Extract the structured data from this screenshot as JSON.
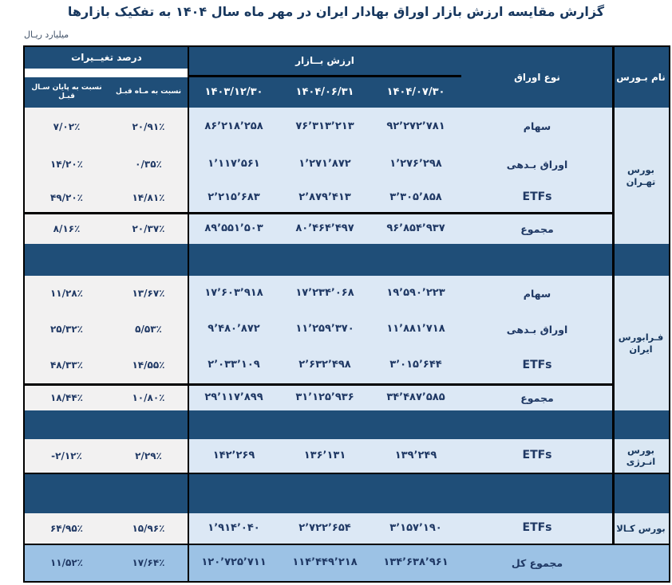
{
  "title": "گزارش مقایسه ارزش بازار اوراق بهادار ایران در مهر ماه سال ۱۴۰۴ به تفکیک بازارها",
  "unit_label": "میلیارد ریـال",
  "colors": {
    "header_dark_blue": "#1F4E78",
    "value_light_blue": "#DCE8F5",
    "exchange_light_blue": "#DAE7F3",
    "percent_light_gray": "#F2F1F1",
    "grand_total_blue": "#9CC2E5",
    "text_navy": "#1F3864"
  },
  "header": {
    "exchange_col": "نام بـورس",
    "security_type_col": "نوع اوراق",
    "market_value_group": "ارزش بــازار",
    "pct_change_group": "درصد تغیــیرات",
    "dates": [
      "۱۴۰۴/۰۷/۳۰",
      "۱۴۰۴/۰۶/۳۱",
      "۱۴۰۳/۱۲/۳۰"
    ],
    "pct_cols": [
      "نسبت به مـاه قبـل",
      "نسبت به پایان سـال قبـل"
    ]
  },
  "groups": [
    {
      "exchange": "بورس تهـران",
      "rows": [
        {
          "type": "سهام",
          "values": [
            "۹۲٬۲۷۲٬۷۸۱",
            "۷۶٬۳۱۳٬۲۱۳",
            "۸۶٬۲۱۸٬۲۵۸"
          ],
          "pct": [
            "۲۰/۹۱٪",
            "۷/۰۲٪"
          ]
        },
        {
          "type": "اوراق بـدهی",
          "values": [
            "۱٬۲۷۶٬۲۹۸",
            "۱٬۲۷۱٬۸۷۲",
            "۱٬۱۱۷٬۵۶۱"
          ],
          "pct": [
            "۰/۳۵٪",
            "۱۴/۲۰٪"
          ]
        },
        {
          "type": "ETFs",
          "values": [
            "۳٬۳۰۵٬۸۵۸",
            "۲٬۸۷۹٬۴۱۳",
            "۲٬۲۱۵٬۶۸۳"
          ],
          "pct": [
            "۱۴/۸۱٪",
            "۴۹/۲۰٪"
          ]
        }
      ],
      "total": {
        "type": "مجموع",
        "values": [
          "۹۶٬۸۵۴٬۹۳۷",
          "۸۰٬۴۶۴٬۴۹۷",
          "۸۹٬۵۵۱٬۵۰۳"
        ],
        "pct": [
          "۲۰/۳۷٪",
          "۸/۱۶٪"
        ]
      }
    },
    {
      "exchange": "فـرابورس ایران",
      "rows": [
        {
          "type": "سهام",
          "values": [
            "۱۹٬۵۹۰٬۲۲۳",
            "۱۷٬۲۳۴٬۰۶۸",
            "۱۷٬۶۰۳٬۹۱۸"
          ],
          "pct": [
            "۱۳/۶۷٪",
            "۱۱/۲۸٪"
          ]
        },
        {
          "type": "اوراق بـدهی",
          "values": [
            "۱۱٬۸۸۱٬۷۱۸",
            "۱۱٬۲۵۹٬۳۷۰",
            "۹٬۴۸۰٬۸۷۲"
          ],
          "pct": [
            "۵/۵۳٪",
            "۲۵/۳۲٪"
          ]
        },
        {
          "type": "ETFs",
          "values": [
            "۳٬۰۱۵٬۶۴۴",
            "۲٬۶۳۲٬۴۹۸",
            "۲٬۰۳۳٬۱۰۹"
          ],
          "pct": [
            "۱۴/۵۵٪",
            "۴۸/۳۳٪"
          ]
        }
      ],
      "total": {
        "type": "مجموع",
        "values": [
          "۳۴٬۴۸۷٬۵۸۵",
          "۳۱٬۱۲۵٬۹۳۶",
          "۲۹٬۱۱۷٬۸۹۹"
        ],
        "pct": [
          "۱۰/۸۰٪",
          "۱۸/۴۴٪"
        ]
      }
    },
    {
      "exchange": "بورس انـرژی",
      "rows": [
        {
          "type": "ETFs",
          "values": [
            "۱۳۹٬۲۴۹",
            "۱۳۶٬۱۳۱",
            "۱۴۲٬۲۶۹"
          ],
          "pct": [
            "۲/۲۹٪",
            "-۲/۱۲٪"
          ]
        }
      ]
    },
    {
      "exchange": "بورس کـالا",
      "rows": [
        {
          "type": "ETFs",
          "values": [
            "۳٬۱۵۷٬۱۹۰",
            "۲٬۷۲۲٬۶۵۴",
            "۱٬۹۱۴٬۰۴۰"
          ],
          "pct": [
            "۱۵/۹۶٪",
            "۶۴/۹۵٪"
          ]
        }
      ]
    }
  ],
  "grand_total": {
    "label": "مجموع کل",
    "values": [
      "۱۳۴٬۶۳۸٬۹۶۱",
      "۱۱۴٬۴۴۹٬۲۱۸",
      "۱۲۰٬۷۲۵٬۷۱۱"
    ],
    "pct": [
      "۱۷/۶۴٪",
      "۱۱/۵۲٪"
    ]
  }
}
